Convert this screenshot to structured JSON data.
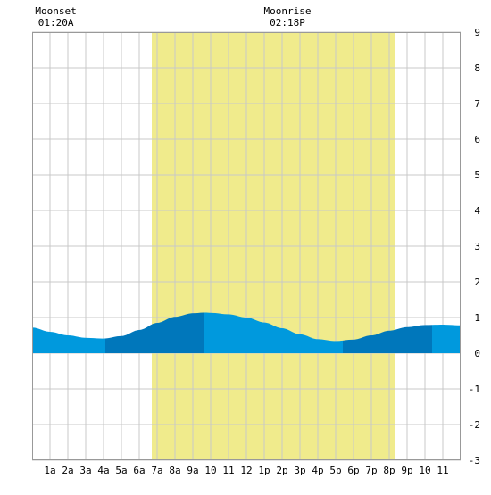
{
  "chart_data": {
    "type": "area",
    "title": "",
    "xlabel": "",
    "ylabel": "",
    "x_ticks": [
      {
        "hour": 1,
        "label": "1a"
      },
      {
        "hour": 2,
        "label": "2a"
      },
      {
        "hour": 3,
        "label": "3a"
      },
      {
        "hour": 4,
        "label": "4a"
      },
      {
        "hour": 5,
        "label": "5a"
      },
      {
        "hour": 6,
        "label": "6a"
      },
      {
        "hour": 7,
        "label": "7a"
      },
      {
        "hour": 8,
        "label": "8a"
      },
      {
        "hour": 9,
        "label": "9a"
      },
      {
        "hour": 10,
        "label": "10"
      },
      {
        "hour": 11,
        "label": "11"
      },
      {
        "hour": 12,
        "label": "12"
      },
      {
        "hour": 13,
        "label": "1p"
      },
      {
        "hour": 14,
        "label": "2p"
      },
      {
        "hour": 15,
        "label": "3p"
      },
      {
        "hour": 16,
        "label": "4p"
      },
      {
        "hour": 17,
        "label": "5p"
      },
      {
        "hour": 18,
        "label": "6p"
      },
      {
        "hour": 19,
        "label": "7p"
      },
      {
        "hour": 20,
        "label": "8p"
      },
      {
        "hour": 21,
        "label": "9p"
      },
      {
        "hour": 22,
        "label": "10"
      },
      {
        "hour": 23,
        "label": "11"
      }
    ],
    "xlim": [
      0,
      24
    ],
    "y_ticks": [
      9,
      8,
      7,
      6,
      5,
      4,
      3,
      2,
      1,
      0,
      -1,
      -2,
      -3
    ],
    "ylim": [
      -3,
      9
    ],
    "grid": true,
    "daylight": {
      "start_hour": 6.7,
      "end_hour": 20.3,
      "color": "#f0eb8c"
    },
    "tide_colors": {
      "light": "#0099dd",
      "dark": "#0077bb"
    },
    "tide_series": {
      "hours": [
        0,
        1,
        2,
        3,
        4,
        5,
        6,
        7,
        8,
        9,
        9.7,
        10,
        11,
        12,
        13,
        14,
        15,
        16,
        17,
        18,
        19,
        20,
        21,
        22,
        23,
        24
      ],
      "heights": [
        0.72,
        0.6,
        0.5,
        0.43,
        0.41,
        0.48,
        0.65,
        0.85,
        1.02,
        1.12,
        1.14,
        1.13,
        1.09,
        1.0,
        0.86,
        0.7,
        0.53,
        0.39,
        0.34,
        0.38,
        0.5,
        0.63,
        0.73,
        0.79,
        0.8,
        0.78
      ]
    },
    "tide_bands": [
      {
        "start_hour": 0,
        "end_hour": 4.1,
        "shade": "light"
      },
      {
        "start_hour": 4.1,
        "end_hour": 9.6,
        "shade": "dark"
      },
      {
        "start_hour": 9.6,
        "end_hour": 17.4,
        "shade": "light"
      },
      {
        "start_hour": 17.4,
        "end_hour": 22.4,
        "shade": "dark"
      },
      {
        "start_hour": 22.4,
        "end_hour": 24,
        "shade": "light"
      }
    ],
    "annotations": [
      {
        "id": "moonset",
        "hour": 1.33,
        "label": "Moonset",
        "time": "01:20A"
      },
      {
        "id": "moonrise",
        "hour": 14.3,
        "label": "Moonrise",
        "time": "02:18P"
      }
    ]
  }
}
